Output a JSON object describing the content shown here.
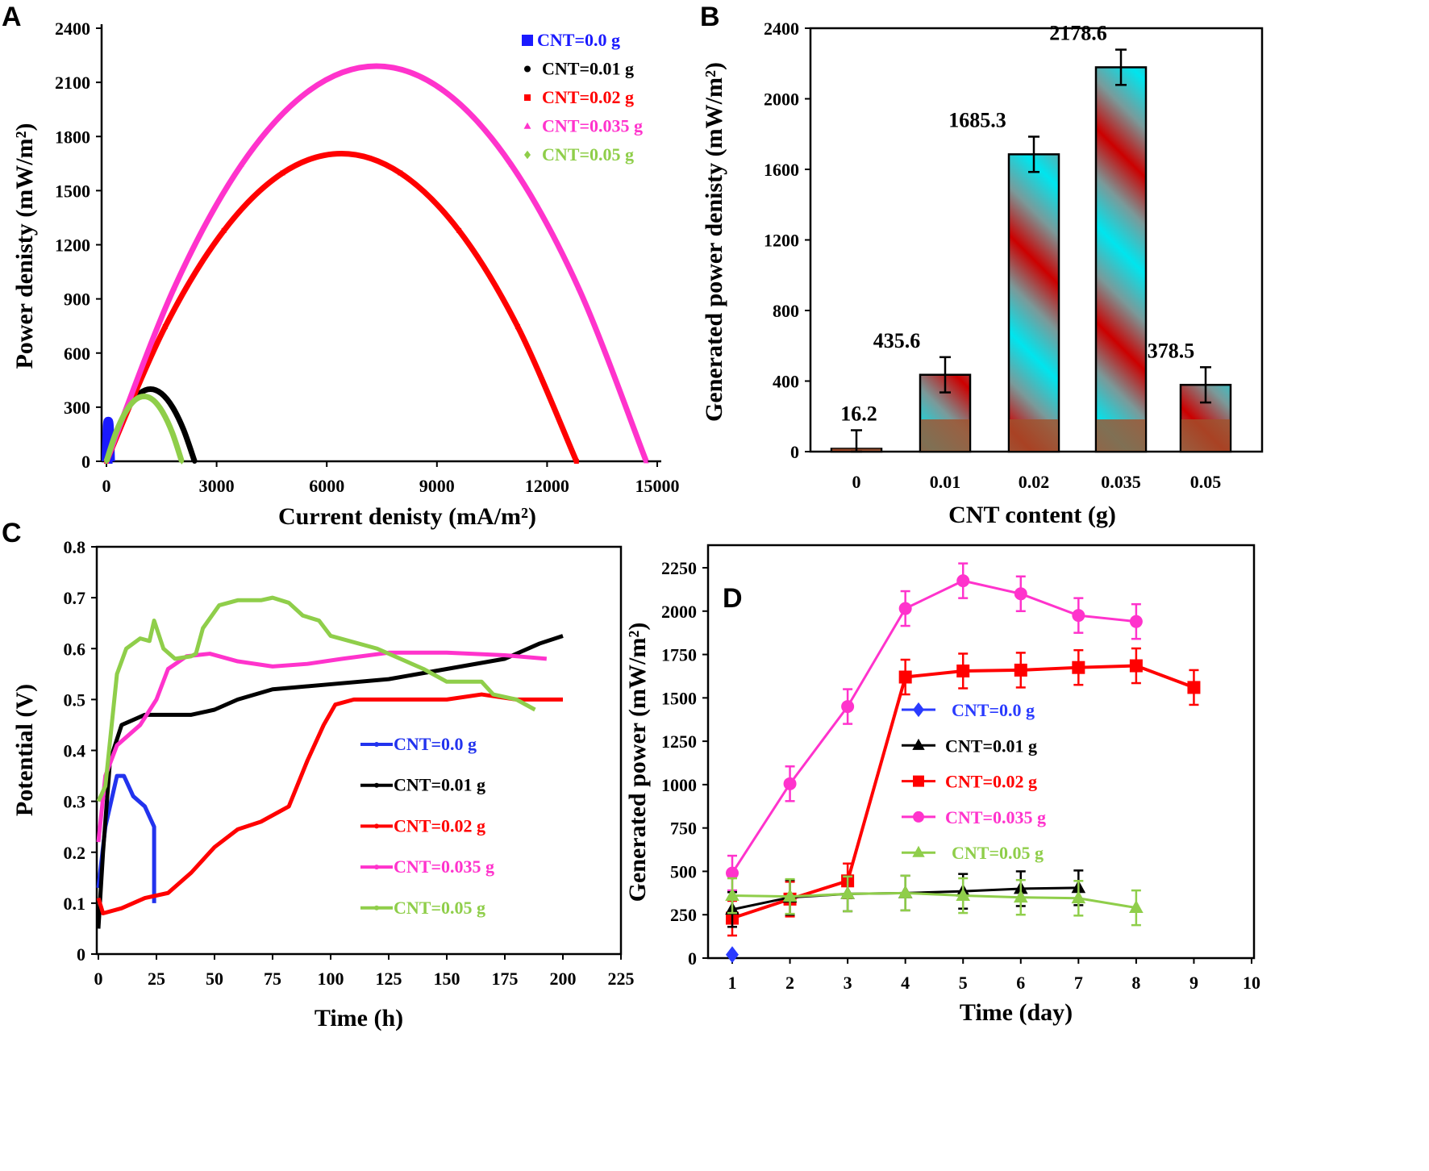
{
  "panel_labels": [
    "A",
    "B",
    "C",
    "D"
  ],
  "chart_data": [
    {
      "type": "line",
      "panel": "A",
      "xlabel": "Current denisty (mA/m²)",
      "ylabel": "Power denisty (mW/m²)",
      "xlim": [
        0,
        15000
      ],
      "ylim": [
        0,
        2400
      ],
      "xticks": [
        0,
        3000,
        6000,
        9000,
        12000,
        15000
      ],
      "yticks": [
        0,
        300,
        600,
        900,
        1200,
        1500,
        1800,
        2100,
        2400
      ],
      "grid": false,
      "legend": "top-right",
      "series": [
        {
          "name": "CNT=0.0 g",
          "color": "#1a1aff",
          "marker": "square",
          "x": [
            0,
            25,
            50,
            75,
            100
          ],
          "y": [
            0,
            165,
            220,
            165,
            0
          ]
        },
        {
          "name": "CNT=0.01 g",
          "color": "#000000",
          "marker": "circle",
          "x": [
            0,
            300,
            600,
            900,
            1200,
            1500,
            1800,
            2100,
            2400
          ],
          "y": [
            0,
            175,
            300,
            375,
            400,
            375,
            300,
            175,
            0
          ]
        },
        {
          "name": "CNT=0.02 g",
          "color": "#ff0000",
          "marker": "square",
          "x": [
            0,
            1600,
            3200,
            4800,
            6400,
            8000,
            9600,
            11200,
            12800
          ],
          "y": [
            0,
            746,
            1279,
            1598,
            1705,
            1598,
            1279,
            746,
            0
          ]
        },
        {
          "name": "CNT=0.035 g",
          "color": "#ff33cc",
          "marker": "triangle",
          "x": [
            0,
            1838,
            3675,
            5513,
            7350,
            9188,
            11025,
            12863,
            14700
          ],
          "y": [
            0,
            958,
            1643,
            2053,
            2190,
            2053,
            1643,
            958,
            0
          ]
        },
        {
          "name": "CNT=0.05 g",
          "color": "#8fce4a",
          "marker": "diamond",
          "x": [
            0,
            256,
            513,
            769,
            1025,
            1281,
            1538,
            1794,
            2050
          ],
          "y": [
            0,
            158,
            270,
            338,
            360,
            338,
            270,
            158,
            0
          ]
        }
      ]
    },
    {
      "type": "bar",
      "panel": "B",
      "xlabel": "CNT content (g)",
      "ylabel": "Generated power denisty  (mW/m²)",
      "categories": [
        "0",
        "0.01",
        "0.02",
        "0.035",
        "0.05"
      ],
      "values": [
        16.2,
        435.6,
        1685.3,
        2178.6,
        378.5
      ],
      "data_labels": [
        "16.2",
        "435.6",
        "1685.3",
        "2178.6",
        "378.5"
      ],
      "errors": [
        105,
        100,
        100,
        100,
        100
      ],
      "ylim": [
        0,
        2400
      ],
      "yticks": [
        0,
        400,
        800,
        1200,
        1600,
        2000,
        2400
      ],
      "grid": false,
      "colors": {
        "stripe_a": "#00e5ee",
        "stripe_b": "#cc0000",
        "base": "#a0522d"
      }
    },
    {
      "type": "line",
      "panel": "C",
      "xlabel": "Time (h)",
      "ylabel": "Potential (V)",
      "xlim": [
        0,
        225
      ],
      "ylim": [
        0,
        0.8
      ],
      "xticks": [
        0,
        25,
        50,
        75,
        100,
        125,
        150,
        175,
        200,
        225
      ],
      "yticks": [
        0,
        0.1,
        0.2,
        0.3,
        0.4,
        0.5,
        0.6,
        0.7,
        0.8
      ],
      "grid": false,
      "legend": "bottom-right",
      "series": [
        {
          "name": "CNT=0.0 g",
          "color": "#2233ee",
          "x": [
            0,
            3,
            8,
            11,
            15,
            20,
            24,
            24
          ],
          "y": [
            0.13,
            0.25,
            0.35,
            0.35,
            0.31,
            0.29,
            0.25,
            0.1
          ]
        },
        {
          "name": "CNT=0.01 g",
          "color": "#000000",
          "x": [
            0,
            2,
            5,
            10,
            20,
            40,
            50,
            60,
            75,
            100,
            125,
            150,
            175,
            190,
            200
          ],
          "y": [
            0.05,
            0.2,
            0.38,
            0.45,
            0.47,
            0.47,
            0.48,
            0.5,
            0.52,
            0.53,
            0.54,
            0.56,
            0.58,
            0.61,
            0.625
          ]
        },
        {
          "name": "CNT=0.02 g",
          "color": "#ff0000",
          "x": [
            0,
            2,
            10,
            20,
            30,
            40,
            50,
            60,
            70,
            78,
            82,
            90,
            97,
            102,
            110,
            150,
            165,
            180,
            200
          ],
          "y": [
            0.11,
            0.08,
            0.09,
            0.11,
            0.12,
            0.16,
            0.21,
            0.245,
            0.26,
            0.28,
            0.29,
            0.38,
            0.45,
            0.49,
            0.5,
            0.5,
            0.51,
            0.5,
            0.5
          ]
        },
        {
          "name": "CNT=0.035 g",
          "color": "#ff33cc",
          "x": [
            0,
            3,
            8,
            18,
            25,
            30,
            38,
            48,
            60,
            75,
            90,
            105,
            125,
            150,
            175,
            193
          ],
          "y": [
            0.22,
            0.35,
            0.41,
            0.45,
            0.5,
            0.56,
            0.585,
            0.59,
            0.575,
            0.565,
            0.57,
            0.58,
            0.592,
            0.592,
            0.587,
            0.58
          ]
        },
        {
          "name": "CNT=0.05 g",
          "color": "#8fce4a",
          "x": [
            0,
            3,
            8,
            12,
            18,
            22,
            24,
            28,
            33,
            40,
            42,
            45,
            52,
            60,
            70,
            75,
            82,
            88,
            95,
            100,
            120,
            140,
            150,
            165,
            170,
            180,
            188
          ],
          "y": [
            0.3,
            0.33,
            0.55,
            0.6,
            0.62,
            0.615,
            0.655,
            0.6,
            0.58,
            0.585,
            0.59,
            0.64,
            0.685,
            0.695,
            0.695,
            0.7,
            0.69,
            0.665,
            0.655,
            0.625,
            0.6,
            0.56,
            0.535,
            0.535,
            0.51,
            0.5,
            0.48
          ]
        }
      ]
    },
    {
      "type": "line",
      "panel": "D",
      "xlabel": "Time (day)",
      "ylabel": "Generated power  (mW/m²)",
      "xlim": [
        1,
        10
      ],
      "ylim": [
        0,
        2250
      ],
      "xticks": [
        1,
        2,
        3,
        4,
        5,
        6,
        7,
        8,
        9,
        10
      ],
      "yticks": [
        0,
        250,
        500,
        750,
        1000,
        1250,
        1500,
        1750,
        2000,
        2250
      ],
      "grid": false,
      "legend": "center",
      "series": [
        {
          "name": "CNT=0.0 g",
          "color": "#2a3bff",
          "marker": "diamond",
          "x": [
            1
          ],
          "y": [
            20
          ],
          "err": [
            0
          ]
        },
        {
          "name": "CNT=0.01 g",
          "color": "#000000",
          "marker": "triangle",
          "x": [
            1,
            2,
            3,
            4,
            5,
            6,
            7
          ],
          "y": [
            280,
            350,
            370,
            375,
            385,
            400,
            405
          ],
          "err": [
            100,
            100,
            100,
            100,
            100,
            100,
            100
          ]
        },
        {
          "name": "CNT=0.02 g",
          "color": "#ff0000",
          "marker": "square",
          "x": [
            1,
            2,
            3,
            4,
            5,
            6,
            7,
            8,
            9
          ],
          "y": [
            230,
            340,
            445,
            1620,
            1655,
            1660,
            1675,
            1685,
            1560
          ],
          "err": [
            100,
            100,
            100,
            100,
            100,
            100,
            100,
            100,
            100
          ]
        },
        {
          "name": "CNT=0.035 g",
          "color": "#ff33cc",
          "marker": "circle",
          "x": [
            1,
            2,
            3,
            4,
            5,
            6,
            7,
            8
          ],
          "y": [
            490,
            1005,
            1450,
            2015,
            2175,
            2100,
            1975,
            1940
          ],
          "err": [
            100,
            100,
            100,
            100,
            100,
            100,
            100,
            100
          ]
        },
        {
          "name": "CNT=0.05 g",
          "color": "#8fce4a",
          "marker": "triangle",
          "x": [
            1,
            2,
            3,
            4,
            5,
            6,
            7,
            8
          ],
          "y": [
            360,
            355,
            370,
            375,
            360,
            350,
            345,
            290
          ],
          "err": [
            100,
            100,
            100,
            100,
            100,
            100,
            100,
            100
          ]
        }
      ]
    }
  ]
}
